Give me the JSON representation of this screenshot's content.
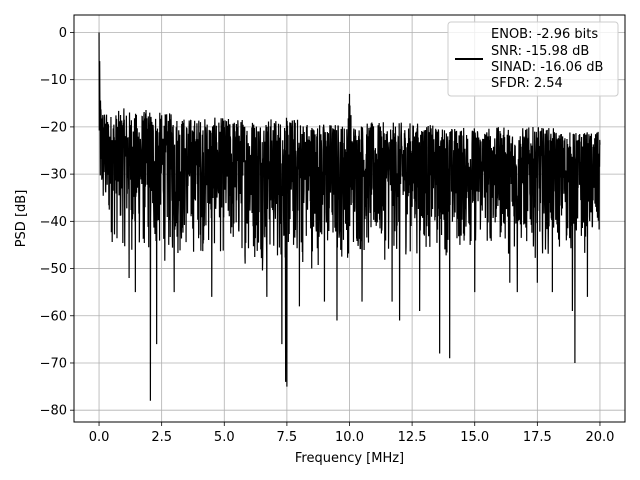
{
  "chart_data": {
    "type": "line",
    "title": "",
    "xlabel": "Frequency [MHz]",
    "ylabel": "PSD [dB]",
    "xlim": [
      -1.0,
      21.0
    ],
    "ylim": [
      -82.5,
      3.7
    ],
    "xticks": [
      0.0,
      2.5,
      5.0,
      7.5,
      10.0,
      12.5,
      15.0,
      17.5,
      20.0
    ],
    "xtick_labels": [
      "0.0",
      "2.5",
      "5.0",
      "7.5",
      "10.0",
      "12.5",
      "15.0",
      "17.5",
      "20.0"
    ],
    "yticks": [
      0,
      -10,
      -20,
      -30,
      -40,
      -50,
      -60,
      -70,
      -80
    ],
    "ytick_labels": [
      "0",
      "−10",
      "−20",
      "−30",
      "−40",
      "−50",
      "−60",
      "−70",
      "−80"
    ],
    "grid": true,
    "legend_position": "top-right",
    "series": [
      {
        "name": "ENOB: -2.96 bits\nSNR: -15.98 dB\nSINAD: -16.06 dB\nSFDR: 2.54",
        "legend_lines": [
          "ENOB: -2.96 bits",
          "SNR: -15.98 dB",
          "SINAD: -16.06 dB",
          "SFDR: 2.54"
        ],
        "color": "#000000",
        "upper_envelope": {
          "x": [
            0.0,
            0.05,
            0.1,
            0.3,
            0.6,
            1.0,
            1.5,
            2.0,
            2.5,
            3.0,
            3.5,
            4.0,
            4.5,
            5.0,
            5.5,
            6.0,
            6.5,
            7.0,
            7.5,
            8.0,
            8.5,
            9.0,
            9.5,
            9.9,
            10.0,
            10.1,
            10.5,
            11.0,
            11.5,
            12.0,
            12.5,
            13.0,
            13.5,
            14.0,
            14.5,
            15.0,
            15.5,
            16.0,
            16.5,
            17.0,
            17.5,
            18.0,
            18.5,
            19.0,
            19.5,
            20.0
          ],
          "y": [
            0,
            -12,
            -15,
            -17,
            -17,
            -16,
            -17,
            -16,
            -17,
            -17,
            -18,
            -18,
            -18,
            -18,
            -18,
            -18,
            -18,
            -18,
            -18,
            -18,
            -19,
            -19,
            -19,
            -19,
            -13,
            -19,
            -19,
            -19,
            -19,
            -19,
            -19,
            -19,
            -20,
            -20,
            -20,
            -20,
            -20,
            -20,
            -20,
            -20,
            -20,
            -20,
            -21,
            -21,
            -21,
            -21
          ]
        },
        "lower_envelope": {
          "x": [
            0.0,
            0.5,
            1.0,
            1.5,
            2.0,
            2.5,
            3.0,
            3.5,
            4.0,
            4.5,
            5.0,
            5.5,
            6.0,
            6.5,
            7.0,
            7.5,
            8.0,
            8.5,
            9.0,
            9.5,
            10.0,
            10.5,
            11.0,
            11.5,
            12.0,
            12.5,
            13.0,
            13.5,
            14.0,
            14.5,
            15.0,
            15.5,
            16.0,
            16.5,
            17.0,
            17.5,
            18.0,
            18.5,
            19.0,
            19.5,
            20.0
          ],
          "y": [
            -41,
            -46,
            -47,
            -49,
            -50,
            -50,
            -50,
            -49,
            -48,
            -48,
            -49,
            -50,
            -50,
            -51,
            -51,
            -51,
            -51,
            -51,
            -50,
            -50,
            -49,
            -49,
            -49,
            -49,
            -49,
            -48,
            -48,
            -48,
            -48,
            -48,
            -47,
            -47,
            -47,
            -48,
            -48,
            -48,
            -48,
            -48,
            -48,
            -48,
            -48
          ]
        },
        "notable_points": [
          {
            "x": 0.0,
            "y": 0.0
          },
          {
            "x": 1.2,
            "y": -52
          },
          {
            "x": 1.45,
            "y": -55
          },
          {
            "x": 2.05,
            "y": -78
          },
          {
            "x": 2.3,
            "y": -66
          },
          {
            "x": 3.0,
            "y": -55
          },
          {
            "x": 4.5,
            "y": -56
          },
          {
            "x": 6.7,
            "y": -56
          },
          {
            "x": 7.3,
            "y": -66
          },
          {
            "x": 7.45,
            "y": -74
          },
          {
            "x": 7.5,
            "y": -75
          },
          {
            "x": 8.0,
            "y": -58
          },
          {
            "x": 9.0,
            "y": -57
          },
          {
            "x": 9.5,
            "y": -61
          },
          {
            "x": 10.0,
            "y": -13
          },
          {
            "x": 10.5,
            "y": -57
          },
          {
            "x": 11.7,
            "y": -57
          },
          {
            "x": 12.0,
            "y": -61
          },
          {
            "x": 12.8,
            "y": -59
          },
          {
            "x": 13.6,
            "y": -68
          },
          {
            "x": 14.0,
            "y": -69
          },
          {
            "x": 15.0,
            "y": -55
          },
          {
            "x": 16.4,
            "y": -53
          },
          {
            "x": 16.7,
            "y": -55
          },
          {
            "x": 17.5,
            "y": -53
          },
          {
            "x": 18.1,
            "y": -55
          },
          {
            "x": 18.9,
            "y": -59
          },
          {
            "x": 19.0,
            "y": -70
          },
          {
            "x": 19.5,
            "y": -56
          }
        ]
      }
    ]
  }
}
